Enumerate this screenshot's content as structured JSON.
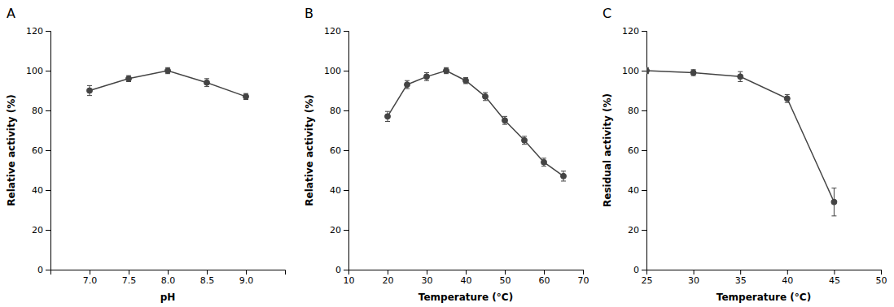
{
  "chart_data": [
    {
      "type": "line",
      "title": "A",
      "x": [
        7.0,
        7.5,
        8.0,
        8.5,
        9.0
      ],
      "series": [
        {
          "values": [
            90,
            96,
            100,
            94,
            87
          ],
          "yerr": [
            2.5,
            1.5,
            1.5,
            2.0,
            1.5
          ],
          "color": "#444444",
          "marker": "circle"
        }
      ],
      "x_label": "pH",
      "y_label": "Relative activity (%)",
      "xlim": [
        6.5,
        9.5
      ],
      "ylim": [
        0,
        120
      ],
      "xticks": [
        {
          "value": 7.0,
          "label": "7.0"
        },
        7.5,
        {
          "value": 8.0,
          "label": "8.0"
        },
        8.5,
        {
          "value": 9.0,
          "label": "9.0"
        }
      ],
      "yticks": [
        0,
        20,
        40,
        60,
        80,
        100,
        120
      ],
      "grid": false
    },
    {
      "type": "line",
      "title": "B",
      "x": [
        20,
        25,
        30,
        35,
        40,
        45,
        50,
        55,
        60,
        65
      ],
      "series": [
        {
          "values": [
            77,
            93,
            97,
            100,
            95,
            87,
            75,
            65,
            54,
            47
          ],
          "yerr": [
            2.5,
            2.0,
            2.0,
            1.5,
            1.5,
            2.0,
            2.0,
            2.0,
            2.0,
            2.5
          ],
          "color": "#444444",
          "marker": "circle"
        }
      ],
      "x_label": "Temperature (°C)",
      "y_label": "Relative activity (%)",
      "xlim": [
        10,
        70
      ],
      "ylim": [
        0,
        120
      ],
      "xticks": [
        10,
        20,
        30,
        40,
        50,
        60,
        70
      ],
      "yticks": [
        0,
        20,
        40,
        60,
        80,
        100,
        120
      ],
      "grid": false
    },
    {
      "type": "line",
      "title": "C",
      "x": [
        25,
        30,
        35,
        40,
        45
      ],
      "series": [
        {
          "values": [
            100,
            99,
            97,
            86,
            34
          ],
          "yerr": [
            1.5,
            1.5,
            2.5,
            2.0,
            7.0
          ],
          "color": "#444444",
          "marker": "circle"
        }
      ],
      "x_label": "Temperature (°C)",
      "y_label": "Residual activity (%)",
      "xlim": [
        25,
        50
      ],
      "ylim": [
        0,
        120
      ],
      "xticks": [
        25,
        30,
        35,
        40,
        45,
        50
      ],
      "yticks": [
        0,
        20,
        40,
        60,
        80,
        100,
        120
      ],
      "grid": false
    }
  ]
}
